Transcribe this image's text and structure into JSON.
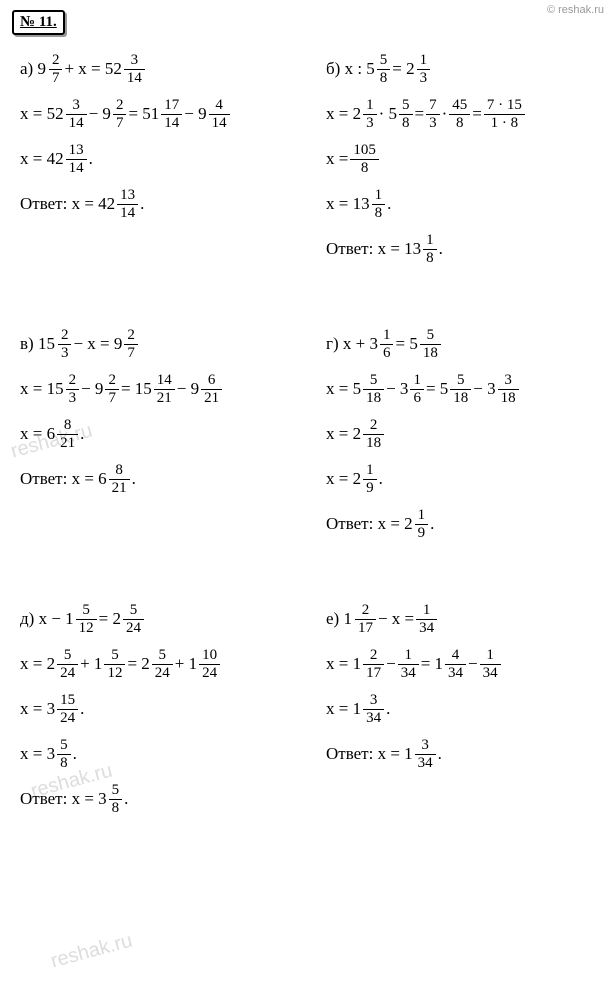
{
  "watermark": "© reshak.ru",
  "problem_label": "№ 11.",
  "diag_watermark": "reshak.ru",
  "problems": {
    "a": {
      "label": "а)",
      "eq": [
        "9",
        "2",
        "7",
        " + x = 52",
        "3",
        "14"
      ],
      "step1": [
        "x = 52",
        "3",
        "14",
        " − 9",
        "2",
        "7",
        " = 51",
        "17",
        "14",
        " − 9",
        "4",
        "14"
      ],
      "result": [
        "x = 42",
        "13",
        "14",
        "."
      ],
      "answer": [
        "Ответ: x = 42",
        "13",
        "14",
        "."
      ]
    },
    "b": {
      "label": "б)",
      "eq": [
        "x : 5",
        "5",
        "8",
        " = 2",
        "1",
        "3"
      ],
      "step1": [
        "x = 2",
        "1",
        "3",
        " · 5",
        "5",
        "8",
        " = ",
        "7",
        "3",
        " · ",
        "45",
        "8",
        " = ",
        "7 · 15",
        "1 · 8"
      ],
      "step2": [
        "x = ",
        "105",
        "8"
      ],
      "result": [
        "x = 13",
        "1",
        "8",
        "."
      ],
      "answer": [
        "Ответ: x = 13",
        "1",
        "8",
        "."
      ]
    },
    "v": {
      "label": "в)",
      "eq": [
        "15",
        "2",
        "3",
        " − x = 9",
        "2",
        "7"
      ],
      "step1": [
        "x = 15",
        "2",
        "3",
        " − 9",
        "2",
        "7",
        " = 15",
        "14",
        "21",
        " − 9",
        "6",
        "21"
      ],
      "result": [
        "x = 6",
        "8",
        "21",
        "."
      ],
      "answer": [
        "Ответ: x = 6",
        "8",
        "21",
        "."
      ]
    },
    "g": {
      "label": "г)",
      "eq": [
        "x + 3",
        "1",
        "6",
        " = 5",
        "5",
        "18"
      ],
      "step1": [
        "x = 5",
        "5",
        "18",
        " − 3",
        "1",
        "6",
        " = 5",
        "5",
        "18",
        " − 3",
        "3",
        "18"
      ],
      "step2": [
        "x = 2",
        "2",
        "18"
      ],
      "result": [
        "x = 2",
        "1",
        "9",
        "."
      ],
      "answer": [
        "Ответ: x = 2",
        "1",
        "9",
        "."
      ]
    },
    "d": {
      "label": "д)",
      "eq": [
        "x − 1",
        "5",
        "12",
        " = 2",
        "5",
        "24"
      ],
      "step1": [
        "x = 2",
        "5",
        "24",
        " + 1",
        "5",
        "12",
        " = 2",
        "5",
        "24",
        " + 1",
        "10",
        "24"
      ],
      "step2": [
        "x = 3",
        "15",
        "24",
        "."
      ],
      "result": [
        "x = 3",
        "5",
        "8",
        "."
      ],
      "answer": [
        "Ответ: x = 3",
        "5",
        "8",
        "."
      ]
    },
    "e": {
      "label": "е)",
      "eq": [
        "1",
        "2",
        "17",
        " − x = ",
        "1",
        "34"
      ],
      "step1": [
        "x = 1",
        "2",
        "17",
        " − ",
        "1",
        "34",
        " = 1",
        "4",
        "34",
        " − ",
        "1",
        "34"
      ],
      "result": [
        "x = 1",
        "3",
        "34",
        "."
      ],
      "answer": [
        "Ответ: x = 1",
        "3",
        "34",
        "."
      ]
    }
  }
}
